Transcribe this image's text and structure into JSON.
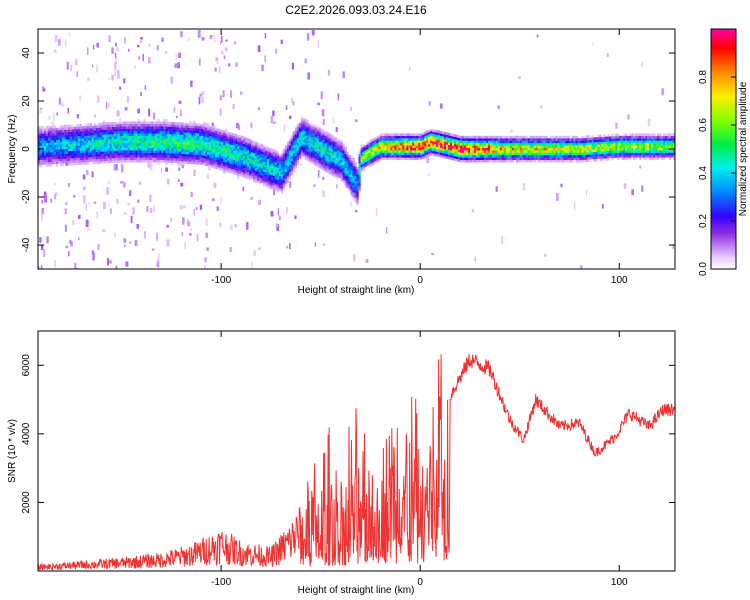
{
  "title": "C2E2.2026.093.03.24.E16",
  "chart_data": [
    {
      "type": "heatmap",
      "title": "C2E2.2026.093.03.24.E16",
      "xlabel": "Height of straight line (km)",
      "ylabel": "Frequency (Hz)",
      "xlim": [
        -192,
        128
      ],
      "ylim": [
        -50,
        50
      ],
      "xticks": [
        -100,
        0,
        100
      ],
      "yticks": [
        -40,
        -20,
        0,
        20,
        40
      ],
      "colorbar": {
        "label": "Normalized spectral amplitude",
        "range": [
          0,
          1
        ],
        "ticks": [
          0.0,
          0.2,
          0.4,
          0.6,
          0.8
        ]
      },
      "ridge": [
        {
          "x": -190,
          "f": 1,
          "amp": 0.35
        },
        {
          "x": -170,
          "f": 2,
          "amp": 0.4
        },
        {
          "x": -150,
          "f": 3,
          "amp": 0.45
        },
        {
          "x": -130,
          "f": 3,
          "amp": 0.5
        },
        {
          "x": -110,
          "f": 2,
          "amp": 0.5
        },
        {
          "x": -90,
          "f": -3,
          "amp": 0.45
        },
        {
          "x": -70,
          "f": -10,
          "amp": 0.4
        },
        {
          "x": -60,
          "f": 5,
          "amp": 0.4
        },
        {
          "x": -50,
          "f": 0,
          "amp": 0.45
        },
        {
          "x": -40,
          "f": -5,
          "amp": 0.4
        },
        {
          "x": -32,
          "f": -15,
          "amp": 0.35
        },
        {
          "x": -30,
          "f": -4,
          "amp": 0.6
        },
        {
          "x": -20,
          "f": 1,
          "amp": 0.75
        },
        {
          "x": -10,
          "f": 1,
          "amp": 0.85
        },
        {
          "x": 0,
          "f": 1,
          "amp": 0.9
        },
        {
          "x": 5,
          "f": 3,
          "amp": 0.9
        },
        {
          "x": 20,
          "f": 0,
          "amp": 0.95
        },
        {
          "x": 40,
          "f": 0,
          "amp": 0.75
        },
        {
          "x": 60,
          "f": 0,
          "amp": 0.7
        },
        {
          "x": 80,
          "f": 0,
          "amp": 0.65
        },
        {
          "x": 100,
          "f": 1,
          "amp": 0.65
        },
        {
          "x": 128,
          "f": 1,
          "amp": 0.6
        }
      ]
    },
    {
      "type": "line",
      "xlabel": "Height of straight line (km)",
      "ylabel": "SNR (10 * v/v)",
      "xlim": [
        -192,
        128
      ],
      "ylim": [
        0,
        7000
      ],
      "xticks": [
        -100,
        0,
        100
      ],
      "yticks": [
        2000,
        4000,
        6000
      ],
      "color": "#ee3333",
      "envelope": [
        {
          "x": -190,
          "y": 200
        },
        {
          "x": -170,
          "y": 300
        },
        {
          "x": -150,
          "y": 400
        },
        {
          "x": -130,
          "y": 550
        },
        {
          "x": -115,
          "y": 800
        },
        {
          "x": -100,
          "y": 1300
        },
        {
          "x": -90,
          "y": 900
        },
        {
          "x": -75,
          "y": 700
        },
        {
          "x": -65,
          "y": 1500
        },
        {
          "x": -55,
          "y": 2600
        },
        {
          "x": -45,
          "y": 3000
        },
        {
          "x": -35,
          "y": 3300
        },
        {
          "x": -25,
          "y": 3800
        },
        {
          "x": -15,
          "y": 4200
        },
        {
          "x": -5,
          "y": 4000
        },
        {
          "x": 5,
          "y": 4500
        },
        {
          "x": 10,
          "y": 3000
        },
        {
          "x": 15,
          "y": 5200
        },
        {
          "x": 25,
          "y": 6300
        },
        {
          "x": 35,
          "y": 6000
        },
        {
          "x": 45,
          "y": 4500
        },
        {
          "x": 52,
          "y": 3900
        },
        {
          "x": 58,
          "y": 5100
        },
        {
          "x": 70,
          "y": 4300
        },
        {
          "x": 80,
          "y": 4400
        },
        {
          "x": 88,
          "y": 3500
        },
        {
          "x": 98,
          "y": 4000
        },
        {
          "x": 105,
          "y": 4700
        },
        {
          "x": 115,
          "y": 4300
        },
        {
          "x": 122,
          "y": 4800
        },
        {
          "x": 128,
          "y": 4800
        }
      ]
    }
  ],
  "colors": {
    "line": "#ee3333",
    "axis": "#000000",
    "background": "#ffffff"
  }
}
